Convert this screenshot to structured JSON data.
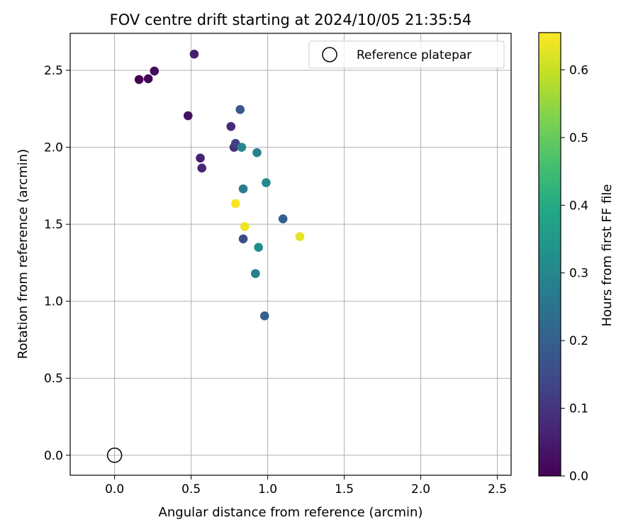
{
  "chart_data": {
    "type": "scatter",
    "title": "FOV centre drift starting at 2024/10/05 21:35:54",
    "xlabel": "Angular distance from reference (arcmin)",
    "ylabel": "Rotation from reference (arcmin)",
    "xlim": [
      -0.29,
      2.59
    ],
    "ylim": [
      -0.13,
      2.74
    ],
    "xticks": [
      0.0,
      0.5,
      1.0,
      1.5,
      2.0,
      2.5
    ],
    "yticks": [
      0.0,
      0.5,
      1.0,
      1.5,
      2.0,
      2.5
    ],
    "xtick_labels": [
      "0.0",
      "0.5",
      "1.0",
      "1.5",
      "2.0",
      "2.5"
    ],
    "ytick_labels": [
      "0.0",
      "0.5",
      "1.0",
      "1.5",
      "2.0",
      "2.5"
    ],
    "grid": true,
    "legend": {
      "position": "top-right",
      "label": "Reference platepar"
    },
    "reference_point": {
      "x": 0.0,
      "y": 0.0
    },
    "colorbar": {
      "label": "Hours from first FF file",
      "range": [
        0.0,
        0.655
      ],
      "ticks": [
        0.0,
        0.1,
        0.2,
        0.3,
        0.4,
        0.5,
        0.6
      ],
      "tick_labels": [
        "0.0",
        "0.1",
        "0.2",
        "0.3",
        "0.4",
        "0.5",
        "0.6"
      ],
      "colormap": "viridis"
    },
    "points": [
      {
        "x": 0.16,
        "y": 2.44,
        "hours": 0.0
      },
      {
        "x": 0.22,
        "y": 2.445,
        "hours": 0.01
      },
      {
        "x": 0.26,
        "y": 2.495,
        "hours": 0.02
      },
      {
        "x": 0.52,
        "y": 2.605,
        "hours": 0.05
      },
      {
        "x": 0.48,
        "y": 2.205,
        "hours": 0.03
      },
      {
        "x": 0.56,
        "y": 1.93,
        "hours": 0.06
      },
      {
        "x": 0.57,
        "y": 1.865,
        "hours": 0.07
      },
      {
        "x": 0.76,
        "y": 2.135,
        "hours": 0.08
      },
      {
        "x": 0.78,
        "y": 2.0,
        "hours": 0.09
      },
      {
        "x": 0.79,
        "y": 2.025,
        "hours": 0.12
      },
      {
        "x": 0.82,
        "y": 2.245,
        "hours": 0.18
      },
      {
        "x": 0.83,
        "y": 2.0,
        "hours": 0.3
      },
      {
        "x": 0.93,
        "y": 1.965,
        "hours": 0.29
      },
      {
        "x": 0.84,
        "y": 1.73,
        "hours": 0.27
      },
      {
        "x": 0.99,
        "y": 1.77,
        "hours": 0.31
      },
      {
        "x": 1.1,
        "y": 1.535,
        "hours": 0.2
      },
      {
        "x": 0.84,
        "y": 1.405,
        "hours": 0.15
      },
      {
        "x": 0.94,
        "y": 1.35,
        "hours": 0.32
      },
      {
        "x": 0.92,
        "y": 1.18,
        "hours": 0.28
      },
      {
        "x": 0.98,
        "y": 0.905,
        "hours": 0.2
      },
      {
        "x": 0.79,
        "y": 1.635,
        "hours": 0.65
      },
      {
        "x": 0.85,
        "y": 1.485,
        "hours": 0.64
      },
      {
        "x": 1.21,
        "y": 1.42,
        "hours": 0.63
      }
    ]
  }
}
